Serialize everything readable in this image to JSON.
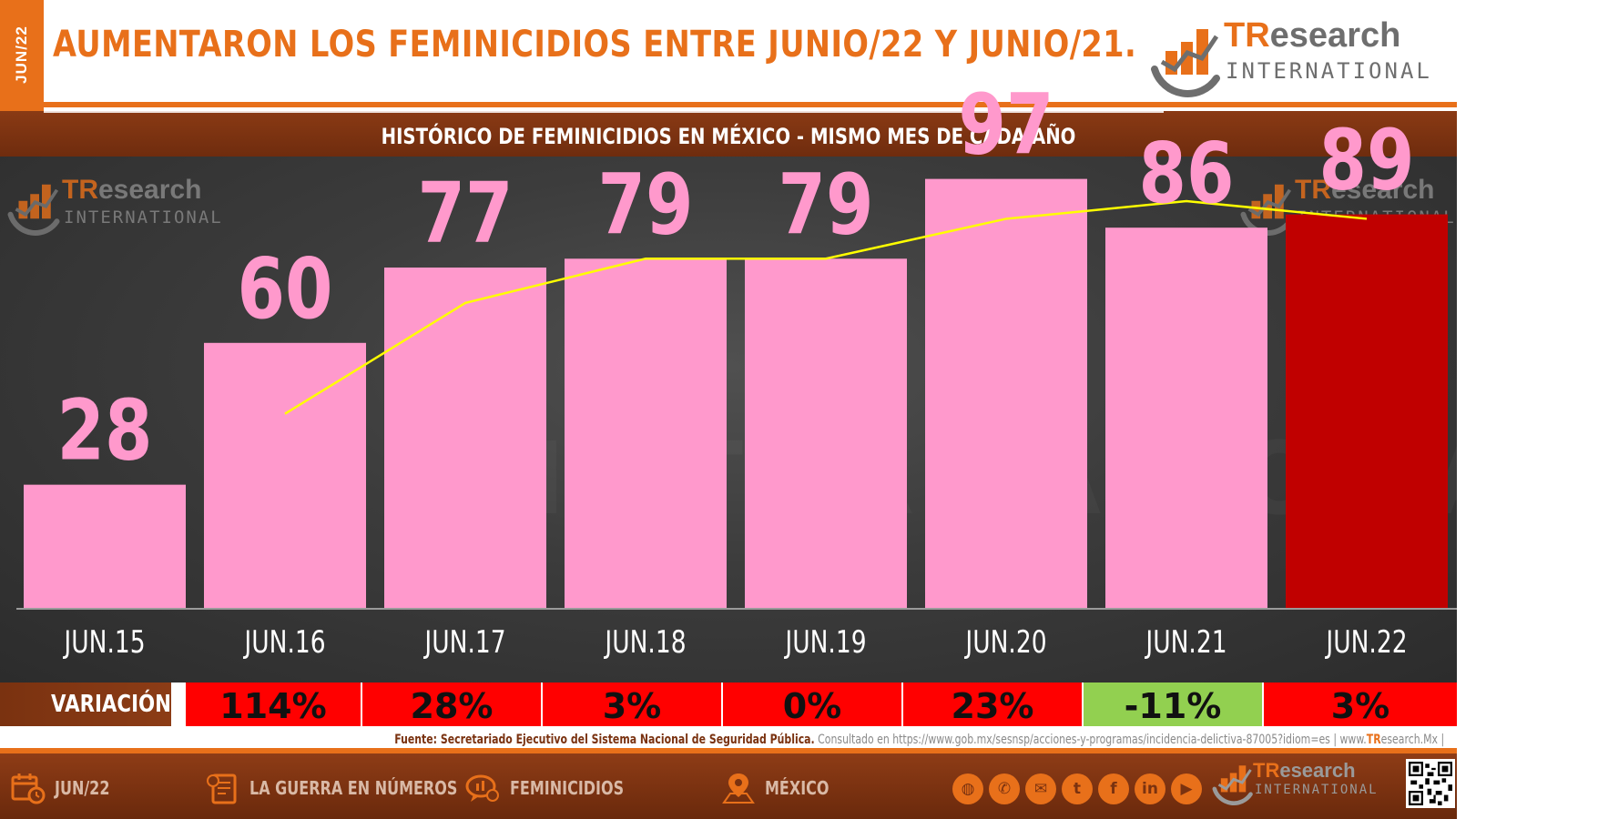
{
  "header": {
    "date_tab": "JUN/22",
    "title": "AUMENTARON LOS FEMINICIDIOS ENTRE JUNIO/22 Y JUNIO/21.",
    "subtitle": "HISTÓRICO DE FEMINICIDIOS EN MÉXICO -  MISMO MES DE CADA AÑO"
  },
  "logo": {
    "brand_a": "TR",
    "brand_b": "esearch",
    "tagline": "INTERNATIONAL"
  },
  "colors": {
    "accent": "#e8701a",
    "bar": "#ff99cc",
    "bar_highlight": "#c00000",
    "trend": "#ffff00",
    "value_label": "#ff99cc",
    "variation_up": "#ff0000",
    "variation_down": "#92d050"
  },
  "chart_data": {
    "type": "bar",
    "categories": [
      "JUN.15",
      "JUN.16",
      "JUN.17",
      "JUN.18",
      "JUN.19",
      "JUN.20",
      "JUN.21",
      "JUN.22"
    ],
    "values": [
      28,
      60,
      77,
      79,
      79,
      97,
      86,
      89
    ],
    "highlight_index": 7,
    "trend_line": {
      "type": "line",
      "x": [
        "JUN.16",
        "JUN.17",
        "JUN.18",
        "JUN.19",
        "JUN.20",
        "JUN.21",
        "JUN.22"
      ],
      "values": [
        44,
        69,
        79,
        79,
        88,
        92,
        88
      ]
    },
    "title": "",
    "xlabel": "",
    "ylabel": "",
    "ylim": [
      0,
      100
    ],
    "grid": false,
    "legend": "none"
  },
  "variation": {
    "label": "VARIACIÓN",
    "items": [
      {
        "value": "114%",
        "direction": "up"
      },
      {
        "value": "28%",
        "direction": "up"
      },
      {
        "value": "3%",
        "direction": "up"
      },
      {
        "value": "0%",
        "direction": "up"
      },
      {
        "value": "23%",
        "direction": "up"
      },
      {
        "value": "-11%",
        "direction": "down"
      },
      {
        "value": "3%",
        "direction": "up"
      }
    ]
  },
  "source": {
    "label": "Fuente: Secretariado Ejecutivo del Sistema Nacional de Seguridad Pública.",
    "consulted": "Consultado en https://www.gob.mx/sesnsp/acciones-y-programas/incidencia-delictiva-87005?idiom=es |",
    "site_prefix": "www.",
    "site_brand": "TR",
    "site_suffix": "esearch.Mx |"
  },
  "footer": {
    "items": [
      {
        "label": "JUN/22",
        "icon": "calendar-icon"
      },
      {
        "label": "LA GUERRA EN NÚMEROS",
        "icon": "report-icon"
      },
      {
        "label": "FEMINICIDIOS",
        "icon": "chat-icon"
      },
      {
        "label": "MÉXICO",
        "icon": "map-pin-icon"
      }
    ],
    "social": [
      {
        "name": "globe-icon",
        "glyph": "◍"
      },
      {
        "name": "phone-icon",
        "glyph": "✆"
      },
      {
        "name": "mail-icon",
        "glyph": "✉"
      },
      {
        "name": "twitter-icon",
        "glyph": "t"
      },
      {
        "name": "facebook-icon",
        "glyph": "f"
      },
      {
        "name": "linkedin-icon",
        "glyph": "in"
      },
      {
        "name": "youtube-icon",
        "glyph": "▶"
      }
    ]
  }
}
